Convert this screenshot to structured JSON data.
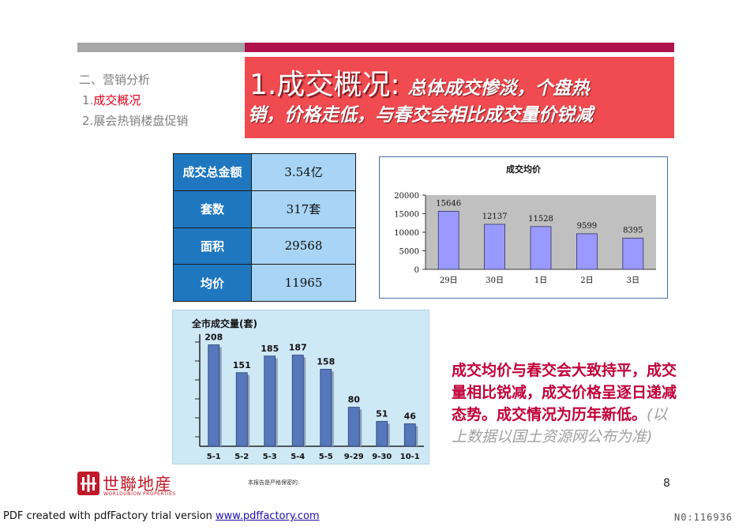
{
  "nav": {
    "title": "二、营销分析",
    "items": [
      {
        "num": "1.",
        "label": "成交概况"
      },
      {
        "num": "2.",
        "label": "展会热销楼盘促销"
      }
    ]
  },
  "headline": {
    "title": "1.成交概况:",
    "subtitle_line1": "总体成交惨淡，个盘热",
    "subtitle_line2": "销，价格走低，与春交会相比成交量价锐减"
  },
  "stats": [
    {
      "label": "成交总金额",
      "value": "3.54亿"
    },
    {
      "label": "套数",
      "value": "317套"
    },
    {
      "label": "面积",
      "value": "29568"
    },
    {
      "label": "均价",
      "value": "11965"
    }
  ],
  "chart_data": [
    {
      "type": "bar",
      "title": "成交均价",
      "categories": [
        "29日",
        "30日",
        "1日",
        "2日",
        "3日"
      ],
      "values": [
        15646,
        12137,
        11528,
        9599,
        8395
      ],
      "ylim": [
        0,
        20000
      ],
      "yticks": [
        0,
        5000,
        10000,
        15000,
        20000
      ],
      "grid": false,
      "colors": {
        "bar": "#9999ff",
        "bar_stroke": "#333366",
        "plot_bg": "#c0c0c0"
      }
    },
    {
      "type": "bar",
      "title": "全市成交量(套)",
      "categories": [
        "5-1",
        "5-2",
        "5-3",
        "5-4",
        "5-5",
        "9-29",
        "9-30",
        "10-1"
      ],
      "values": [
        208,
        151,
        185,
        187,
        158,
        80,
        51,
        46
      ],
      "ylim": [
        0,
        230
      ],
      "colors": {
        "bar": "#5577bb",
        "panel_bg": "#cfe8f6"
      }
    }
  ],
  "note": {
    "main": "成交均价与春交会大致持平，成交量相比锐减，成交价格呈逐日递减态势。成交情况为历年新低。",
    "aside": "(以上数据以国土资源网公布为准)"
  },
  "logo": {
    "name": "世聯地産",
    "en": "WORLDUNION PROPERTIES"
  },
  "confidential": "本报告是严格保密的.",
  "page_number": "8",
  "footer": {
    "text": "PDF created with pdfFactory trial version ",
    "link": "www.pdffactory.com"
  },
  "watermark": "N0:116936"
}
